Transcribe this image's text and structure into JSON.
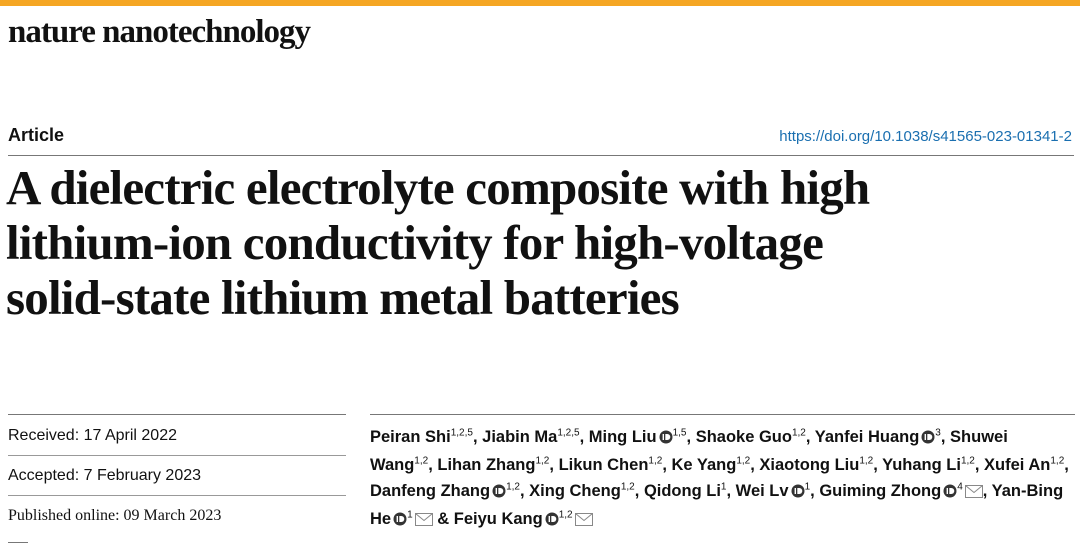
{
  "journal": "nature nanotechnology",
  "article_type": "Article",
  "doi": "https://doi.org/10.1038/s41565-023-01341-2",
  "title_lines": [
    "A dielectric electrolyte composite with high",
    "lithium-ion conductivity for high-voltage",
    "solid-state lithium metal batteries"
  ],
  "dates": [
    "Received: 17 April 2022",
    "Accepted: 7 February 2023",
    "Published online: 09 March 2023"
  ],
  "authors": [
    {
      "name": "Peiran Shi",
      "affiliations": "1,2,5",
      "orcid": false,
      "corresponding": false,
      "after": ","
    },
    {
      "name": "Jiabin Ma",
      "affiliations": "1,2,5",
      "orcid": false,
      "corresponding": false,
      "after": ","
    },
    {
      "name": "Ming Liu",
      "affiliations": "1,5",
      "orcid": true,
      "corresponding": false,
      "after": ","
    },
    {
      "name": "Shaoke Guo",
      "affiliations": "1,2",
      "orcid": false,
      "corresponding": false,
      "after": ","
    },
    {
      "name": "Yanfei Huang",
      "affiliations": "3",
      "orcid": true,
      "corresponding": false,
      "after": ","
    },
    {
      "name": "Shuwei Wang",
      "affiliations": "1,2",
      "orcid": false,
      "corresponding": false,
      "after": ","
    },
    {
      "name": "Lihan Zhang",
      "affiliations": "1,2",
      "orcid": false,
      "corresponding": false,
      "after": ","
    },
    {
      "name": "Likun Chen",
      "affiliations": "1,2",
      "orcid": false,
      "corresponding": false,
      "after": ","
    },
    {
      "name": "Ke Yang",
      "affiliations": "1,2",
      "orcid": false,
      "corresponding": false,
      "after": ","
    },
    {
      "name": "Xiaotong Liu",
      "affiliations": "1,2",
      "orcid": false,
      "corresponding": false,
      "after": ","
    },
    {
      "name": "Yuhang Li",
      "affiliations": "1,2",
      "orcid": false,
      "corresponding": false,
      "after": ","
    },
    {
      "name": "Xufei An",
      "affiliations": "1,2",
      "orcid": false,
      "corresponding": false,
      "after": ","
    },
    {
      "name": "Danfeng Zhang",
      "affiliations": "1,2",
      "orcid": true,
      "corresponding": false,
      "after": ","
    },
    {
      "name": "Xing Cheng",
      "affiliations": "1,2",
      "orcid": false,
      "corresponding": false,
      "after": ","
    },
    {
      "name": "Qidong Li",
      "affiliations": "1",
      "orcid": false,
      "corresponding": false,
      "after": ","
    },
    {
      "name": "Wei Lv",
      "affiliations": "1",
      "orcid": true,
      "corresponding": false,
      "after": ","
    },
    {
      "name": "Guiming Zhong",
      "affiliations": "4",
      "orcid": true,
      "corresponding": true,
      "after": ","
    },
    {
      "name": "Yan-Bing He",
      "affiliations": "1",
      "orcid": true,
      "corresponding": true,
      "after": "&"
    },
    {
      "name": "Feiyu Kang",
      "affiliations": "1,2",
      "orcid": true,
      "corresponding": true
    }
  ]
}
